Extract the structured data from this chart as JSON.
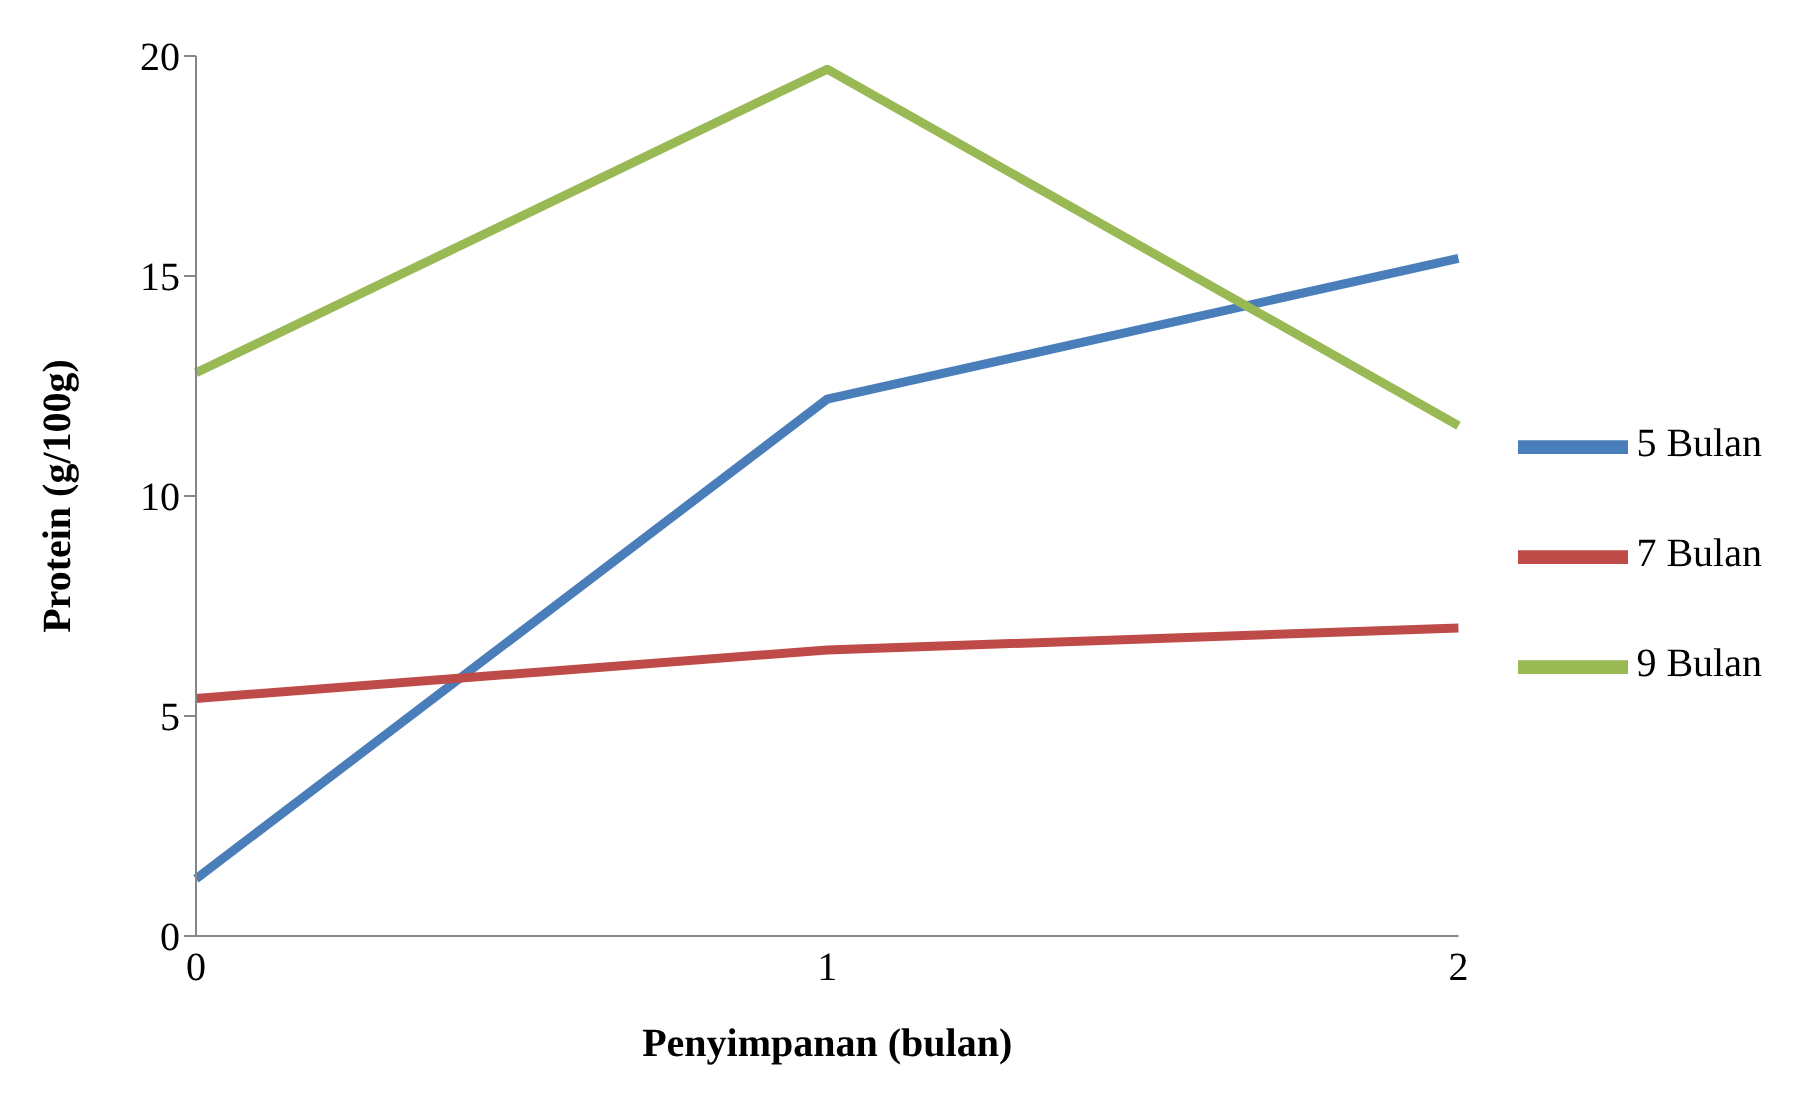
{
  "chart_data": {
    "type": "line",
    "xlabel": "Penyimpanan (bulan)",
    "ylabel": "Protein (g/100g)",
    "categories": [
      "0",
      "1",
      "2"
    ],
    "series": [
      {
        "name": "5 Bulan",
        "color": "#4a7ebb",
        "values": [
          1.3,
          12.2,
          15.4
        ]
      },
      {
        "name": "7 Bulan",
        "color": "#be4b48",
        "values": [
          5.4,
          6.5,
          7.0
        ]
      },
      {
        "name": "9 Bulan",
        "color": "#98b954",
        "values": [
          12.8,
          19.7,
          11.6
        ]
      }
    ],
    "ylim": [
      0,
      20
    ],
    "yticks": [
      0,
      5,
      10,
      15,
      20
    ],
    "grid": false,
    "legend": "right",
    "marker": "none",
    "line_style": "solid"
  }
}
